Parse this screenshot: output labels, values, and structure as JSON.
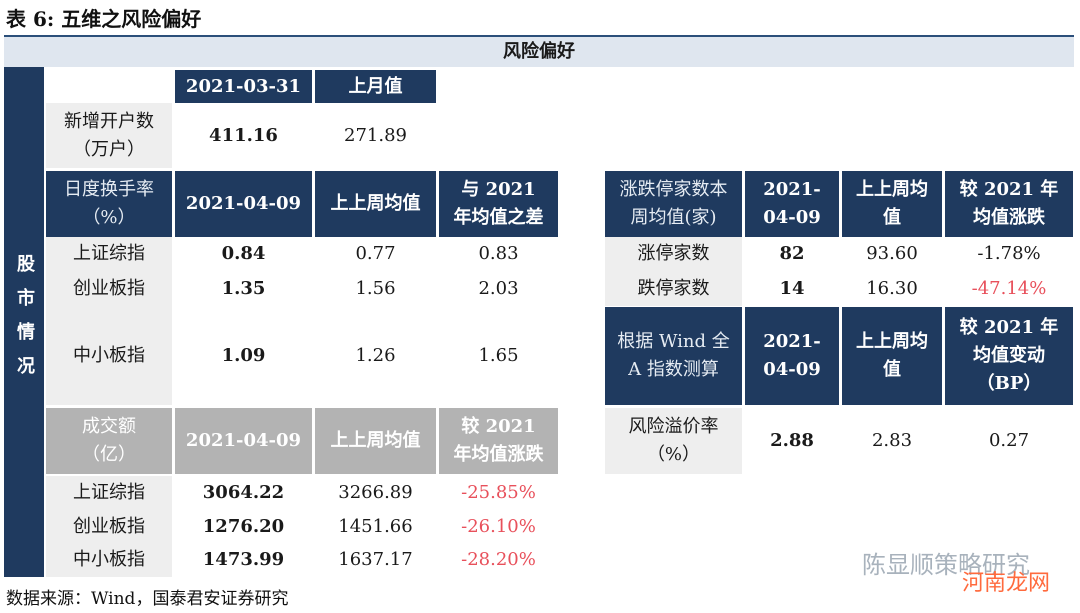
{
  "title": "表 6:  五维之风险偏好",
  "banner": "风险偏好",
  "side_label": "股市情况",
  "source": "数据来源：Wind，国泰君安证券研究",
  "watermark": "陈显顺策略研究",
  "watermark2": "河南龙网",
  "accounts": {
    "h_date": "2021-03-31",
    "h_prev": "上月值",
    "label": "新增开户数（万户）",
    "value": "411.16",
    "prev": "271.89"
  },
  "turnover": {
    "h_label": "日度换手率（%）",
    "h_date": "2021-04-09",
    "h_prev": "上上周均值",
    "h_diff": "与 2021 年均值之差",
    "rows": [
      {
        "name": "上证综指",
        "value": "0.84",
        "prev": "0.77",
        "diff": "0.83"
      },
      {
        "name": "创业板指",
        "value": "1.35",
        "prev": "1.56",
        "diff": "2.03"
      },
      {
        "name": "中小板指",
        "value": "1.09",
        "prev": "1.26",
        "diff": "1.65"
      }
    ]
  },
  "volume": {
    "h_label": "成交额（亿）",
    "h_date": "2021-04-09",
    "h_prev": "上上周均值",
    "h_diff": "较 2021 年均值涨跌",
    "rows": [
      {
        "name": "上证综指",
        "value": "3064.22",
        "prev": "3266.89",
        "diff": "-25.85%"
      },
      {
        "name": "创业板指",
        "value": "1276.20",
        "prev": "1451.66",
        "diff": "-26.10%"
      },
      {
        "name": "中小板指",
        "value": "1473.99",
        "prev": "1637.17",
        "diff": "-28.20%"
      }
    ]
  },
  "limits": {
    "h_label": "涨跌停家数本周均值(家)",
    "h_date": "2021-04-09",
    "h_prev": "上上周均值",
    "h_diff": "较 2021 年均值涨跌",
    "rows": [
      {
        "name": "涨停家数",
        "value": "82",
        "prev": "93.60",
        "diff": "-1.78%"
      },
      {
        "name": "跌停家数",
        "value": "14",
        "prev": "16.30",
        "diff": "-47.14%"
      }
    ]
  },
  "premium": {
    "h_label": "根据 Wind 全 A 指数测算",
    "h_date": "2021-04-09",
    "h_prev": "上上周均值",
    "h_diff": "较 2021 年均值变动（BP）",
    "label": "风险溢价率（%）",
    "value": "2.88",
    "prev": "2.83",
    "diff": "0.27"
  }
}
